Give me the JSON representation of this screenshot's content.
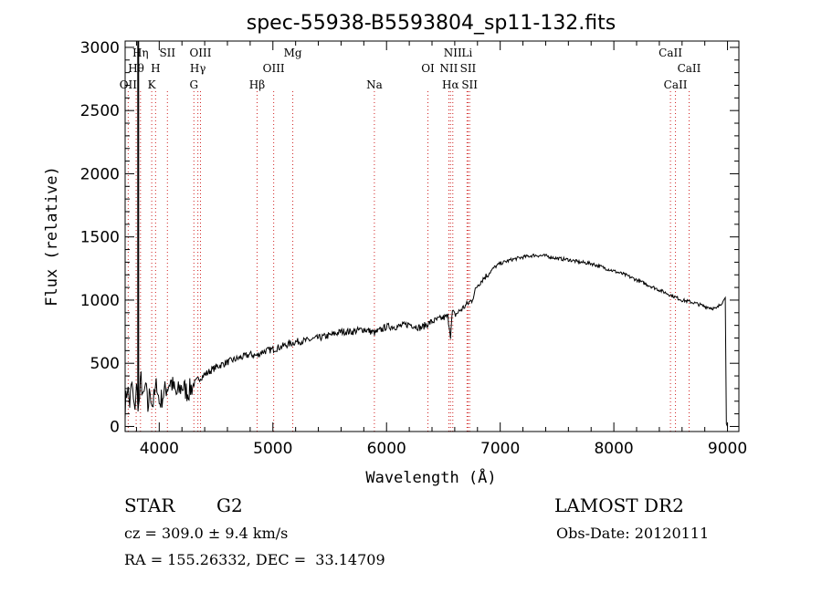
{
  "chart_data": {
    "type": "line",
    "title": "spec-55938-B5593804_sp11-132.fits",
    "xlabel": "Wavelength (Å)",
    "ylabel": "Flux (relative)",
    "xlim": [
      3700,
      9100
    ],
    "ylim": [
      -40,
      3050
    ],
    "xticks": [
      4000,
      5000,
      6000,
      7000,
      8000,
      9000
    ],
    "yticks": [
      0,
      500,
      1000,
      1500,
      2000,
      2500,
      3000
    ],
    "series": [
      {
        "x": [
          3700,
          3720,
          3740,
          3760,
          3780,
          3800,
          3820,
          3840,
          3860,
          3880,
          3900,
          3920,
          3940,
          3960,
          3980,
          4000,
          4050,
          4100,
          4150,
          4200,
          4250,
          4300,
          4350,
          4400,
          4450,
          4500,
          4600,
          4700,
          4800,
          4862,
          4900,
          5000,
          5100,
          5200,
          5300,
          5400,
          5500,
          5600,
          5700,
          5800,
          5900,
          6000,
          6100,
          6200,
          6300,
          6400,
          6500,
          6540,
          6563,
          6580,
          6600,
          6650,
          6700,
          6750,
          6800,
          6850,
          6900,
          6950,
          7000,
          7100,
          7200,
          7300,
          7400,
          7500,
          7600,
          7700,
          7800,
          7900,
          8000,
          8100,
          8200,
          8300,
          8400,
          8500,
          8600,
          8700,
          8800,
          8900,
          8960,
          8980,
          8990,
          9000
        ],
        "y": [
          150,
          320,
          180,
          340,
          120,
          300,
          150,
          380,
          200,
          330,
          140,
          290,
          170,
          240,
          350,
          180,
          280,
          360,
          250,
          320,
          270,
          330,
          380,
          410,
          440,
          470,
          510,
          540,
          570,
          560,
          590,
          610,
          640,
          670,
          680,
          700,
          720,
          750,
          750,
          770,
          740,
          790,
          790,
          810,
          780,
          830,
          860,
          870,
          720,
          910,
          880,
          920,
          960,
          1000,
          1120,
          1170,
          1210,
          1260,
          1290,
          1320,
          1340,
          1355,
          1350,
          1330,
          1320,
          1300,
          1290,
          1260,
          1230,
          1200,
          1160,
          1120,
          1080,
          1040,
          1000,
          980,
          950,
          930,
          990,
          1020,
          20,
          0
        ]
      }
    ],
    "spectral_lines": [
      {
        "label": "Hη",
        "x": 3835,
        "row": 1
      },
      {
        "label": "Hθ",
        "x": 3797,
        "row": 2
      },
      {
        "label": "OII",
        "x": 3727,
        "row": 3
      },
      {
        "label": "SII",
        "x": 4072,
        "row": 1
      },
      {
        "label": "H",
        "x": 3968,
        "row": 2
      },
      {
        "label": "K",
        "x": 3934,
        "row": 3
      },
      {
        "label": "OIII",
        "x": 4363,
        "row": 1
      },
      {
        "label": "Hγ",
        "x": 4340,
        "row": 2
      },
      {
        "label": "G",
        "x": 4305,
        "row": 3
      },
      {
        "label": "Mg",
        "x": 5175,
        "row": 1
      },
      {
        "label": "OIII",
        "x": 5007,
        "row": 2
      },
      {
        "label": "Hβ",
        "x": 4861,
        "row": 3
      },
      {
        "label": "Na",
        "x": 5893,
        "row": 3
      },
      {
        "label": "NII",
        "x": 6583,
        "row": 1
      },
      {
        "label": "Li",
        "x": 6708,
        "row": 1
      },
      {
        "label": "OI",
        "x": 6364,
        "row": 2
      },
      {
        "label": "NII",
        "x": 6548,
        "row": 2
      },
      {
        "label": "SII",
        "x": 6717,
        "row": 2
      },
      {
        "label": "Hα",
        "x": 6563,
        "row": 3
      },
      {
        "label": "SII",
        "x": 6731,
        "row": 3
      },
      {
        "label": "CaII",
        "x": 8498,
        "row": 1
      },
      {
        "label": "CaII",
        "x": 8662,
        "row": 2
      },
      {
        "label": "CaII",
        "x": 8542,
        "row": 3
      }
    ]
  },
  "info": {
    "object_class": "STAR",
    "subclass": "G2",
    "survey": "LAMOST DR2",
    "redshift": "cz = 309.0 ± 9.4 km/s",
    "obs_date": "Obs-Date: 20120111",
    "coords": "RA = 155.26332, DEC =  33.14709"
  }
}
